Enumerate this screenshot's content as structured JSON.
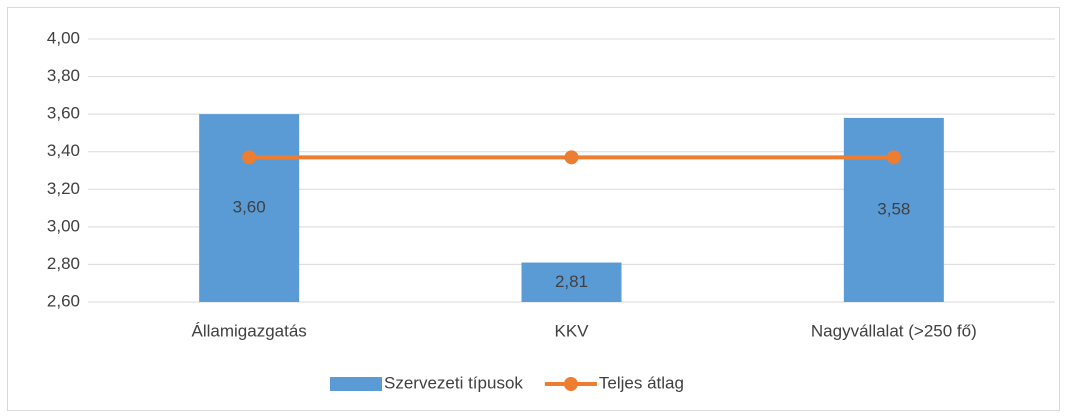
{
  "chart_data": {
    "type": "bar",
    "categories": [
      "Államigazgatás",
      "KKV",
      "Nagyvállalat (>250 fő)"
    ],
    "series": [
      {
        "name": "Szervezeti típusok",
        "type": "bar",
        "color": "#5b9bd5",
        "values": [
          3.6,
          2.81,
          3.58
        ],
        "value_labels": [
          "3,60",
          "2,81",
          "3,58"
        ]
      },
      {
        "name": "Teljes átlag",
        "type": "line",
        "color": "#ed7d31",
        "values": [
          3.37,
          3.37,
          3.37
        ]
      }
    ],
    "ylim": [
      2.6,
      4.0
    ],
    "yticks": [
      {
        "value": 2.6,
        "label": "2,60"
      },
      {
        "value": 2.8,
        "label": "2,80"
      },
      {
        "value": 3.0,
        "label": "3,00"
      },
      {
        "value": 3.2,
        "label": "3,20"
      },
      {
        "value": 3.4,
        "label": "3,40"
      },
      {
        "value": 3.6,
        "label": "3,60"
      },
      {
        "value": 3.8,
        "label": "3,80"
      },
      {
        "value": 4.0,
        "label": "4,00"
      }
    ],
    "grid": true,
    "legend": "bottom"
  }
}
